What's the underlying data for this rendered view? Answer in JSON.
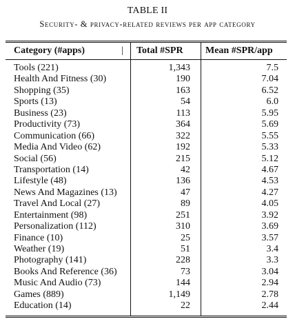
{
  "table": {
    "number": "TABLE II",
    "caption": "Security- & privacy-related reviews per app category",
    "headers": {
      "category": "Category (#apps)",
      "total": "Total #SPR",
      "mean": "Mean #SPR/app",
      "pipe": "|"
    },
    "rows": [
      {
        "category": "Tools (221)",
        "total": "1,343",
        "mean": "7.5"
      },
      {
        "category": "Health And Fitness (30)",
        "total": "190",
        "mean": "7.04"
      },
      {
        "category": "Shopping (35)",
        "total": "163",
        "mean": "6.52"
      },
      {
        "category": "Sports (13)",
        "total": "54",
        "mean": "6.0"
      },
      {
        "category": "Business (23)",
        "total": "113",
        "mean": "5.95"
      },
      {
        "category": "Productivity (73)",
        "total": "364",
        "mean": "5.69"
      },
      {
        "category": "Communication (66)",
        "total": "322",
        "mean": "5.55"
      },
      {
        "category": "Media And Video (62)",
        "total": "192",
        "mean": "5.33"
      },
      {
        "category": "Social (56)",
        "total": "215",
        "mean": "5.12"
      },
      {
        "category": "Transportation (14)",
        "total": "42",
        "mean": "4.67"
      },
      {
        "category": "Lifestyle (48)",
        "total": "136",
        "mean": "4.53"
      },
      {
        "category": "News And Magazines (13)",
        "total": "47",
        "mean": "4.27"
      },
      {
        "category": "Travel And Local (27)",
        "total": "89",
        "mean": "4.05"
      },
      {
        "category": "Entertainment (98)",
        "total": "251",
        "mean": "3.92"
      },
      {
        "category": "Personalization (112)",
        "total": "310",
        "mean": "3.69"
      },
      {
        "category": "Finance (10)",
        "total": "25",
        "mean": "3.57"
      },
      {
        "category": "Weather (19)",
        "total": "51",
        "mean": "3.4"
      },
      {
        "category": "Photography (141)",
        "total": "228",
        "mean": "3.3"
      },
      {
        "category": "Books And Reference (36)",
        "total": "73",
        "mean": "3.04"
      },
      {
        "category": "Music And Audio (73)",
        "total": "144",
        "mean": "2.94"
      },
      {
        "category": "Games (889)",
        "total": "1,149",
        "mean": "2.78"
      },
      {
        "category": "Education (14)",
        "total": "22",
        "mean": "2.44"
      }
    ]
  }
}
